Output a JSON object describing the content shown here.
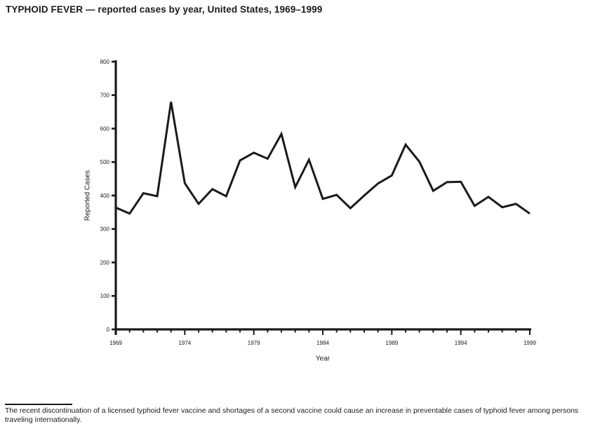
{
  "chart_data": {
    "type": "line",
    "title": "TYPHOID FEVER — reported cases by year, United States, 1969–1999",
    "xlabel": "Year",
    "ylabel": "Reported Cases",
    "x": [
      1969,
      1970,
      1971,
      1972,
      1973,
      1974,
      1975,
      1976,
      1977,
      1978,
      1979,
      1980,
      1981,
      1982,
      1983,
      1984,
      1985,
      1986,
      1987,
      1988,
      1989,
      1990,
      1991,
      1992,
      1993,
      1994,
      1995,
      1996,
      1997,
      1998,
      1999
    ],
    "values": [
      364,
      346,
      407,
      398,
      680,
      437,
      375,
      419,
      398,
      505,
      528,
      510,
      584,
      425,
      507,
      390,
      402,
      362,
      400,
      436,
      460,
      552,
      501,
      414,
      440,
      441,
      369,
      396,
      365,
      375,
      346
    ],
    "ylim": [
      0,
      800
    ],
    "ytick_interval": 100,
    "yticks": [
      0,
      100,
      200,
      300,
      400,
      500,
      600,
      700,
      800
    ],
    "xticks": [
      1969,
      1974,
      1979,
      1984,
      1989,
      1994,
      1999
    ],
    "grid": false,
    "legend": "none",
    "line_color": "#1a1a1a",
    "axis_color": "#1a1a1a"
  },
  "footnote": "The recent discontinuation of a licensed typhoid fever vaccine and shortages of a second vaccine could cause an increase in preventable cases of typhoid fever among persons traveling internationally."
}
